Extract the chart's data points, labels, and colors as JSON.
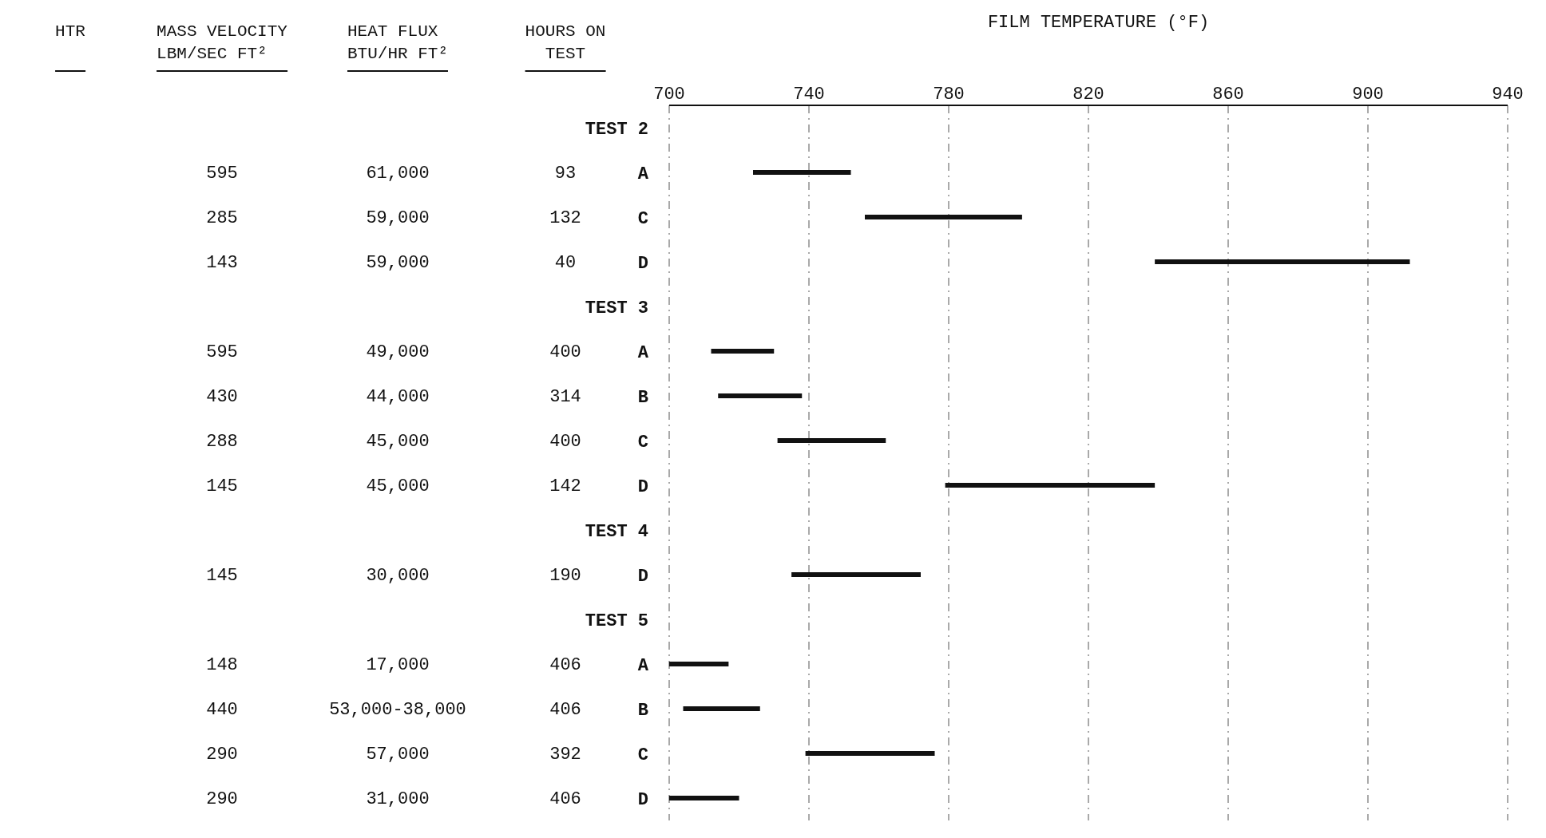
{
  "chart_data": {
    "type": "bar",
    "orientation": "horizontal",
    "xlabel": "FILM TEMPERATURE (°F)",
    "categories": [
      "TEST 2",
      "A",
      "C",
      "D",
      "TEST 3",
      "A",
      "B",
      "C",
      "D",
      "TEST 4",
      "D",
      "TEST 5",
      "A",
      "B",
      "C",
      "D"
    ],
    "base": [
      null,
      724,
      756,
      839,
      null,
      712,
      714,
      731,
      779,
      null,
      735,
      null,
      700,
      704,
      739,
      700
    ],
    "values": [
      null,
      28,
      45,
      73,
      null,
      18,
      24,
      31,
      60,
      null,
      37,
      null,
      17,
      22,
      37,
      20
    ],
    "color": "#111111",
    "xlim": [
      700,
      940
    ],
    "xticks": [
      700,
      740,
      780,
      820,
      860,
      900,
      940
    ],
    "grid": "x",
    "annotations": [
      "HTR",
      "MASS VELOCITY\nLBM/SEC FT²",
      "HEAT FLUX\nBTU/HR FT²",
      "HOURS ON\nTEST",
      "595",
      "61,000",
      "93",
      "285",
      "59,000",
      "132",
      "143",
      "59,000",
      "40",
      "595",
      "49,000",
      "400",
      "430",
      "44,000",
      "314",
      "288",
      "45,000",
      "400",
      "145",
      "45,000",
      "142",
      "145",
      "30,000",
      "190",
      "148",
      "17,000",
      "406",
      "440",
      "53,000-38,000",
      "406",
      "290",
      "57,000",
      "392",
      "290",
      "31,000",
      "406"
    ]
  }
}
